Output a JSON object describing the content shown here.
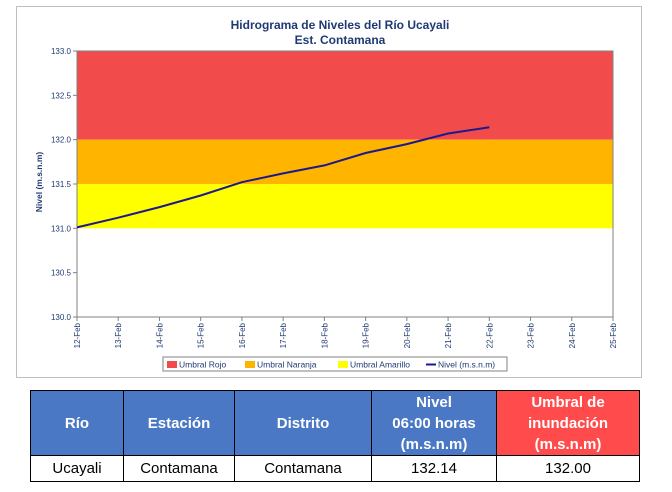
{
  "chart_data": {
    "type": "line",
    "title": "Hidrograma de Niveles del Río Ucayali",
    "subtitle": "Est. Contamana",
    "ylabel": "Nivel (m.s.n.m)",
    "ylim": [
      130.0,
      133.0
    ],
    "yticks": [
      "130.0",
      "130.5",
      "131.0",
      "131.5",
      "132.0",
      "132.5",
      "133.0"
    ],
    "categories": [
      "12-Feb",
      "13-Feb",
      "14-Feb",
      "15-Feb",
      "16-Feb",
      "17-Feb",
      "18-Feb",
      "19-Feb",
      "20-Feb",
      "21-Feb",
      "22-Feb",
      "23-Feb",
      "24-Feb",
      "25-Feb"
    ],
    "bands": [
      {
        "name": "Umbral Rojo",
        "from": 132.0,
        "to": 133.0,
        "color": "#f24b4b"
      },
      {
        "name": "Umbral Naranja",
        "from": 131.5,
        "to": 132.0,
        "color": "#ffb400"
      },
      {
        "name": "Umbral Amarillo",
        "from": 131.0,
        "to": 131.5,
        "color": "#ffff00"
      }
    ],
    "series": [
      {
        "name": "Nivel (m.s.n.m)",
        "color": "#1a1a8c",
        "values": [
          131.01,
          131.12,
          131.24,
          131.37,
          131.52,
          131.62,
          131.71,
          131.85,
          131.95,
          132.07,
          132.14,
          null,
          null,
          null
        ]
      }
    ],
    "legend": [
      "Umbral Rojo",
      "Umbral Naranja",
      "Umbral Amarillo",
      "Nivel (m.s.n.m)"
    ],
    "legend_position": "bottom",
    "grid": false
  },
  "table": {
    "headers": [
      {
        "lines": [
          "Río"
        ]
      },
      {
        "lines": [
          "Estación"
        ]
      },
      {
        "lines": [
          "Distrito"
        ]
      },
      {
        "lines": [
          "Nivel",
          "06:00 horas",
          "(m.s.n.m)"
        ]
      },
      {
        "lines": [
          "Umbral de",
          "inundación",
          "(m.s.n.m)"
        ]
      }
    ],
    "row": [
      "Ucayali",
      "Contamana",
      "Contamana",
      "132.14",
      "132.00"
    ]
  }
}
